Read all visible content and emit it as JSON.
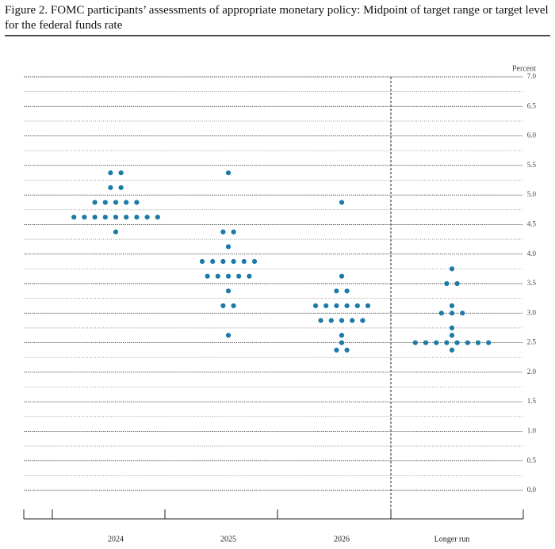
{
  "chart_data": {
    "type": "dotplot",
    "title": "Figure 2.  FOMC participants’ assessments of appropriate monetary policy: Midpoint of target range or target level for the federal funds rate",
    "y_axis_label": "Percent",
    "color": "#1b7aa8",
    "categories": [
      "2024",
      "2025",
      "2026",
      "Longer run"
    ],
    "values": [
      [
        5.375,
        5.375,
        5.125,
        5.125,
        4.875,
        4.875,
        4.875,
        4.875,
        4.875,
        4.625,
        4.625,
        4.625,
        4.625,
        4.625,
        4.625,
        4.625,
        4.625,
        4.625,
        4.375
      ],
      [
        5.375,
        4.375,
        4.375,
        4.125,
        3.875,
        3.875,
        3.875,
        3.875,
        3.875,
        3.875,
        3.625,
        3.625,
        3.625,
        3.625,
        3.625,
        3.375,
        3.125,
        3.125,
        2.625
      ],
      [
        4.875,
        3.625,
        3.375,
        3.375,
        3.125,
        3.125,
        3.125,
        3.125,
        3.125,
        3.125,
        2.875,
        2.875,
        2.875,
        2.875,
        2.875,
        2.625,
        2.5,
        2.375,
        2.375
      ],
      [
        3.75,
        3.5,
        3.5,
        3.125,
        3.0,
        3.0,
        3.0,
        2.75,
        2.625,
        2.5,
        2.5,
        2.5,
        2.5,
        2.5,
        2.5,
        2.5,
        2.5,
        2.375
      ]
    ],
    "ylim": [
      0,
      7
    ],
    "yticks": [
      {
        "value": 0,
        "label": "0.0"
      },
      0.5,
      {
        "value": 1,
        "label": "1.0"
      },
      1.5,
      {
        "value": 2,
        "label": "2.0"
      },
      2.5,
      {
        "value": 3,
        "label": "3.0"
      },
      3.5,
      {
        "value": 4,
        "label": "4.0"
      },
      4.5,
      {
        "value": 5,
        "label": "5.0"
      },
      5.5,
      {
        "value": 6,
        "label": "6.0"
      },
      6.5,
      {
        "value": 7,
        "label": "7.0"
      }
    ],
    "yticks_minor": [
      0.25,
      0.75,
      1.25,
      1.75,
      2.25,
      2.75,
      3.25,
      3.75,
      4.25,
      4.75,
      5.25,
      5.75,
      6.25,
      6.75
    ],
    "grid": true
  }
}
